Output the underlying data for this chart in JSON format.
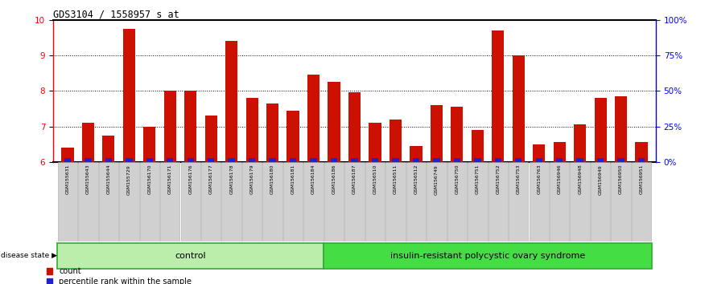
{
  "title": "GDS3104 / 1558957_s_at",
  "samples": [
    "GSM155631",
    "GSM155643",
    "GSM155644",
    "GSM155729",
    "GSM156170",
    "GSM156171",
    "GSM156176",
    "GSM156177",
    "GSM156178",
    "GSM156179",
    "GSM156180",
    "GSM156181",
    "GSM156184",
    "GSM156186",
    "GSM156187",
    "GSM156510",
    "GSM156511",
    "GSM156512",
    "GSM156749",
    "GSM156750",
    "GSM156751",
    "GSM156752",
    "GSM156753",
    "GSM156763",
    "GSM156946",
    "GSM156948",
    "GSM156949",
    "GSM156950",
    "GSM156951"
  ],
  "counts": [
    6.4,
    7.1,
    6.75,
    9.75,
    7.0,
    8.0,
    8.0,
    7.3,
    9.4,
    7.8,
    7.65,
    7.45,
    8.45,
    8.25,
    7.95,
    7.1,
    7.2,
    6.45,
    7.6,
    7.55,
    6.9,
    9.7,
    9.0,
    6.5,
    6.55,
    7.05,
    7.8,
    7.85,
    6.55
  ],
  "group_labels": [
    "control",
    "insulin-resistant polycystic ovary syndrome"
  ],
  "group_sizes": [
    13,
    16
  ],
  "ylim": [
    6,
    10
  ],
  "yticks": [
    6,
    7,
    8,
    9,
    10
  ],
  "bar_color": "#cc1100",
  "percentile_color": "#2222cc",
  "ctrl_color": "#bbeeaa",
  "pcos_color": "#44dd44",
  "group_edge_color": "#33aa33",
  "legend_count_label": "count",
  "legend_pct_label": "percentile rank within the sample",
  "disease_state_label": "disease state"
}
